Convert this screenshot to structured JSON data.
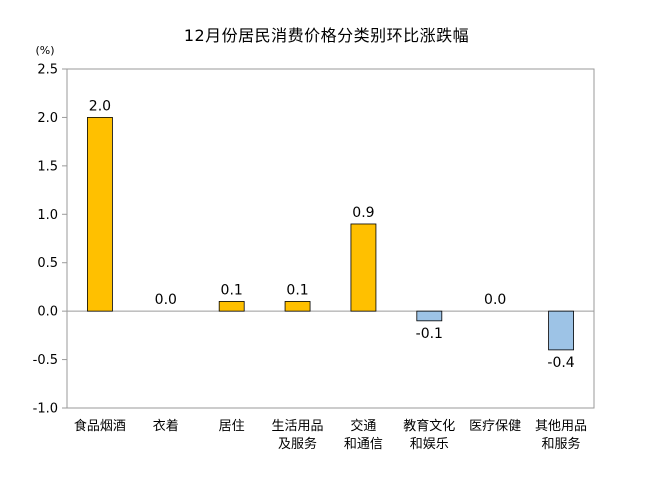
{
  "chart_data": {
    "type": "bar",
    "title": "12月份居民消费价格分类别环比涨跌幅",
    "unit": "(%)",
    "categories": [
      [
        "食品烟酒"
      ],
      [
        "衣着"
      ],
      [
        "居住"
      ],
      [
        "生活用品",
        "及服务"
      ],
      [
        "交通",
        "和通信"
      ],
      [
        "教育文化",
        "和娱乐"
      ],
      [
        "医疗保健"
      ],
      [
        "其他用品",
        "和服务"
      ]
    ],
    "values": [
      2.0,
      0.0,
      0.1,
      0.1,
      0.9,
      -0.1,
      0.0,
      -0.4
    ],
    "data_labels": [
      "2.0",
      "0.0",
      "0.1",
      "0.1",
      "0.9",
      "-0.1",
      "0.0",
      "-0.4"
    ],
    "ylim": [
      -1.0,
      2.5
    ],
    "yticks": [
      2.5,
      2.0,
      1.5,
      1.0,
      0.5,
      0.0,
      -0.5,
      -1.0
    ],
    "ytick_labels": [
      "2.5",
      "2.0",
      "1.5",
      "1.0",
      "0.5",
      "0.0",
      "-0.5",
      "-1.0"
    ],
    "colors": {
      "positive": "#FFC000",
      "negative": "#9DC3E6",
      "border": "#000000"
    },
    "grid": false,
    "legend": "none"
  }
}
